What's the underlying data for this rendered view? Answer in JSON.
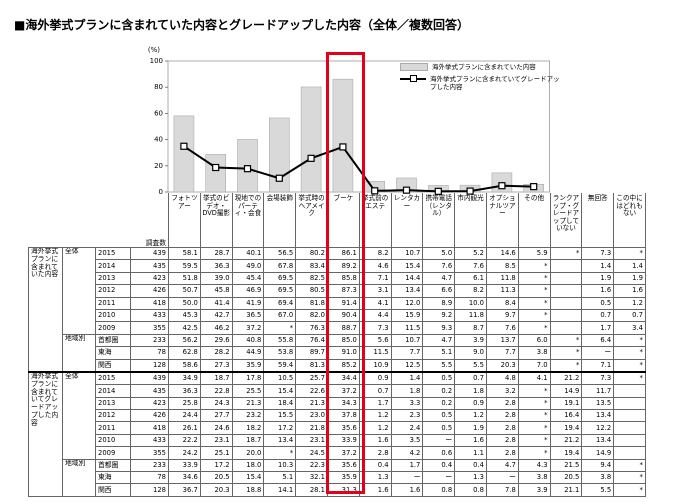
{
  "title": "■海外挙式プランに含まれていた内容とグレードアップした内容（全体／複数回答）",
  "chart_data": {
    "type": "bar_line",
    "y_label": "(%)",
    "ylim": [
      0,
      100
    ],
    "yticks": [
      0,
      20,
      40,
      60,
      80,
      100
    ],
    "series": [
      {
        "name": "海外挙式プランに含まれていた内容",
        "type": "bar",
        "color": "#d9d9d9",
        "values": [
          58.1,
          28.7,
          40.1,
          56.5,
          80.2,
          86.1,
          8.2,
          10.7,
          5.0,
          5.2,
          14.6,
          5.9
        ]
      },
      {
        "name": "海外挙式プランに含まれていてグレードアップした内容",
        "type": "line",
        "color": "#000000",
        "values": [
          34.9,
          18.7,
          17.8,
          10.5,
          25.7,
          34.4,
          0.9,
          1.4,
          0.5,
          0.7,
          4.8,
          4.1
        ]
      }
    ]
  },
  "table": {
    "count_header": "調査数",
    "columns": [
      "フォトツアー",
      "挙式のビデオ・DVD撮影",
      "現地でのパーティ・会食",
      "会場装飾",
      "挙式時のヘアメイク",
      "ブーケ",
      "挙式前のエステ",
      "レンタカー",
      "携帯電話（レンタル）",
      "市内観光",
      "オプショナルツアー",
      "その他",
      "ランクアップ・グレードアップしていない",
      "無回答",
      "この中にはどれもない"
    ],
    "groups": [
      {
        "label": "海外挙式プランに含まれていた内容",
        "sections": [
          {
            "label": "全体",
            "rows": [
              {
                "label": "2015",
                "n": 439,
                "cells": [
                  "58.1",
                  "28.7",
                  "40.1",
                  "56.5",
                  "80.2",
                  "86.1",
                  "8.2",
                  "10.7",
                  "5.0",
                  "5.2",
                  "14.6",
                  "5.9",
                  "*",
                  "7.3",
                  "*"
                ]
              },
              {
                "label": "2014",
                "n": 435,
                "cells": [
                  "59.5",
                  "36.3",
                  "49.0",
                  "67.8",
                  "83.4",
                  "89.2",
                  "4.6",
                  "15.4",
                  "7.6",
                  "7.6",
                  "8.5",
                  "*",
                  null,
                  "1.4",
                  "1.4"
                ]
              },
              {
                "label": "2013",
                "n": 423,
                "cells": [
                  "51.8",
                  "39.0",
                  "45.4",
                  "69.5",
                  "82.5",
                  "85.8",
                  "7.1",
                  "14.4",
                  "4.7",
                  "6.1",
                  "11.8",
                  "*",
                  null,
                  "1.9",
                  "1.9"
                ]
              },
              {
                "label": "2012",
                "n": 426,
                "cells": [
                  "50.7",
                  "45.8",
                  "46.9",
                  "69.5",
                  "80.5",
                  "87.3",
                  "3.1",
                  "13.4",
                  "6.6",
                  "8.2",
                  "11.3",
                  "*",
                  null,
                  "1.6",
                  "1.6"
                ]
              },
              {
                "label": "2011",
                "n": 418,
                "cells": [
                  "50.0",
                  "41.4",
                  "41.9",
                  "69.4",
                  "81.8",
                  "91.4",
                  "4.1",
                  "12.0",
                  "8.9",
                  "10.0",
                  "8.4",
                  "*",
                  null,
                  "0.5",
                  "1.2"
                ]
              },
              {
                "label": "2010",
                "n": 433,
                "cells": [
                  "45.3",
                  "42.7",
                  "36.5",
                  "67.0",
                  "82.0",
                  "90.4",
                  "4.4",
                  "15.9",
                  "9.2",
                  "11.8",
                  "9.7",
                  "*",
                  null,
                  "0.7",
                  "0.7"
                ]
              },
              {
                "label": "2009",
                "n": 355,
                "cells": [
                  "42.5",
                  "46.2",
                  "37.2",
                  "*",
                  "76.3",
                  "88.7",
                  "7.3",
                  "11.5",
                  "9.3",
                  "8.7",
                  "7.6",
                  "*",
                  null,
                  "1.7",
                  "3.4"
                ]
              }
            ]
          },
          {
            "label": "地域別",
            "rows": [
              {
                "label": "首都圏",
                "n": 233,
                "cells": [
                  "56.2",
                  "29.6",
                  "40.8",
                  "55.8",
                  "76.4",
                  "85.0",
                  "5.6",
                  "10.7",
                  "4.7",
                  "3.9",
                  "13.7",
                  "6.0",
                  "*",
                  "6.4",
                  "*"
                ]
              },
              {
                "label": "東海",
                "n": 78,
                "cells": [
                  "62.8",
                  "28.2",
                  "44.9",
                  "53.8",
                  "89.7",
                  "91.0",
                  "11.5",
                  "7.7",
                  "5.1",
                  "9.0",
                  "7.7",
                  "3.8",
                  "*",
                  "ー",
                  "*"
                ]
              },
              {
                "label": "関西",
                "n": 128,
                "cells": [
                  "58.6",
                  "27.3",
                  "35.9",
                  "59.4",
                  "81.3",
                  "85.2",
                  "10.9",
                  "12.5",
                  "5.5",
                  "5.5",
                  "20.3",
                  "7.0",
                  "*",
                  "7.1",
                  "*"
                ]
              }
            ]
          }
        ]
      },
      {
        "label": "海外挙式プランに含まれていてグレードアップした内容",
        "sections": [
          {
            "label": "全体",
            "rows": [
              {
                "label": "2015",
                "n": 439,
                "cells": [
                  "34.9",
                  "18.7",
                  "17.8",
                  "10.5",
                  "25.7",
                  "34.4",
                  "0.9",
                  "1.4",
                  "0.5",
                  "0.7",
                  "4.8",
                  "4.1",
                  "21.2",
                  "7.3",
                  "*"
                ]
              },
              {
                "label": "2014",
                "n": 435,
                "cells": [
                  "36.3",
                  "22.8",
                  "25.5",
                  "15.4",
                  "22.6",
                  "37.2",
                  "0.7",
                  "1.8",
                  "0.2",
                  "1.8",
                  "3.2",
                  "*",
                  "14.9",
                  "11.7",
                  null
                ]
              },
              {
                "label": "2013",
                "n": 423,
                "cells": [
                  "25.8",
                  "24.3",
                  "21.3",
                  "18.4",
                  "21.3",
                  "34.3",
                  "1.7",
                  "3.3",
                  "0.2",
                  "0.9",
                  "2.8",
                  "*",
                  "19.1",
                  "13.5",
                  null
                ]
              },
              {
                "label": "2012",
                "n": 426,
                "cells": [
                  "24.4",
                  "27.7",
                  "23.2",
                  "15.5",
                  "23.0",
                  "37.8",
                  "1.2",
                  "2.3",
                  "0.5",
                  "1.2",
                  "2.8",
                  "*",
                  "16.4",
                  "13.4",
                  null
                ]
              },
              {
                "label": "2011",
                "n": 418,
                "cells": [
                  "26.1",
                  "24.6",
                  "18.2",
                  "17.2",
                  "21.8",
                  "35.6",
                  "1.2",
                  "2.4",
                  "0.5",
                  "1.9",
                  "2.8",
                  "*",
                  "19.4",
                  "12.2",
                  null
                ]
              },
              {
                "label": "2010",
                "n": 433,
                "cells": [
                  "22.2",
                  "23.1",
                  "18.7",
                  "13.4",
                  "23.1",
                  "33.9",
                  "1.6",
                  "3.5",
                  "ー",
                  "1.6",
                  "2.8",
                  "*",
                  "21.2",
                  "13.4",
                  null
                ]
              },
              {
                "label": "2009",
                "n": 355,
                "cells": [
                  "24.2",
                  "25.1",
                  "20.0",
                  "*",
                  "24.5",
                  "37.2",
                  "2.8",
                  "4.2",
                  "0.6",
                  "1.1",
                  "2.8",
                  "*",
                  "19.4",
                  "14.9",
                  null
                ]
              }
            ]
          },
          {
            "label": "地域別",
            "rows": [
              {
                "label": "首都圏",
                "n": 233,
                "cells": [
                  "33.9",
                  "17.2",
                  "18.0",
                  "10.3",
                  "22.3",
                  "35.6",
                  "0.4",
                  "1.7",
                  "0.4",
                  "0.4",
                  "4.7",
                  "4.3",
                  "21.5",
                  "9.4",
                  "*"
                ]
              },
              {
                "label": "東海",
                "n": 78,
                "cells": [
                  "34.6",
                  "20.5",
                  "15.4",
                  "5.1",
                  "32.1",
                  "35.9",
                  "1.3",
                  "ー",
                  "ー",
                  "1.3",
                  "ー",
                  "3.8",
                  "20.5",
                  "3.8",
                  "*"
                ]
              },
              {
                "label": "関西",
                "n": 128,
                "cells": [
                  "36.7",
                  "20.3",
                  "18.8",
                  "14.1",
                  "28.1",
                  "31.3",
                  "1.6",
                  "1.6",
                  "0.8",
                  "0.8",
                  "7.8",
                  "3.9",
                  "21.1",
                  "5.5",
                  "*"
                ]
              }
            ]
          }
        ]
      }
    ]
  }
}
